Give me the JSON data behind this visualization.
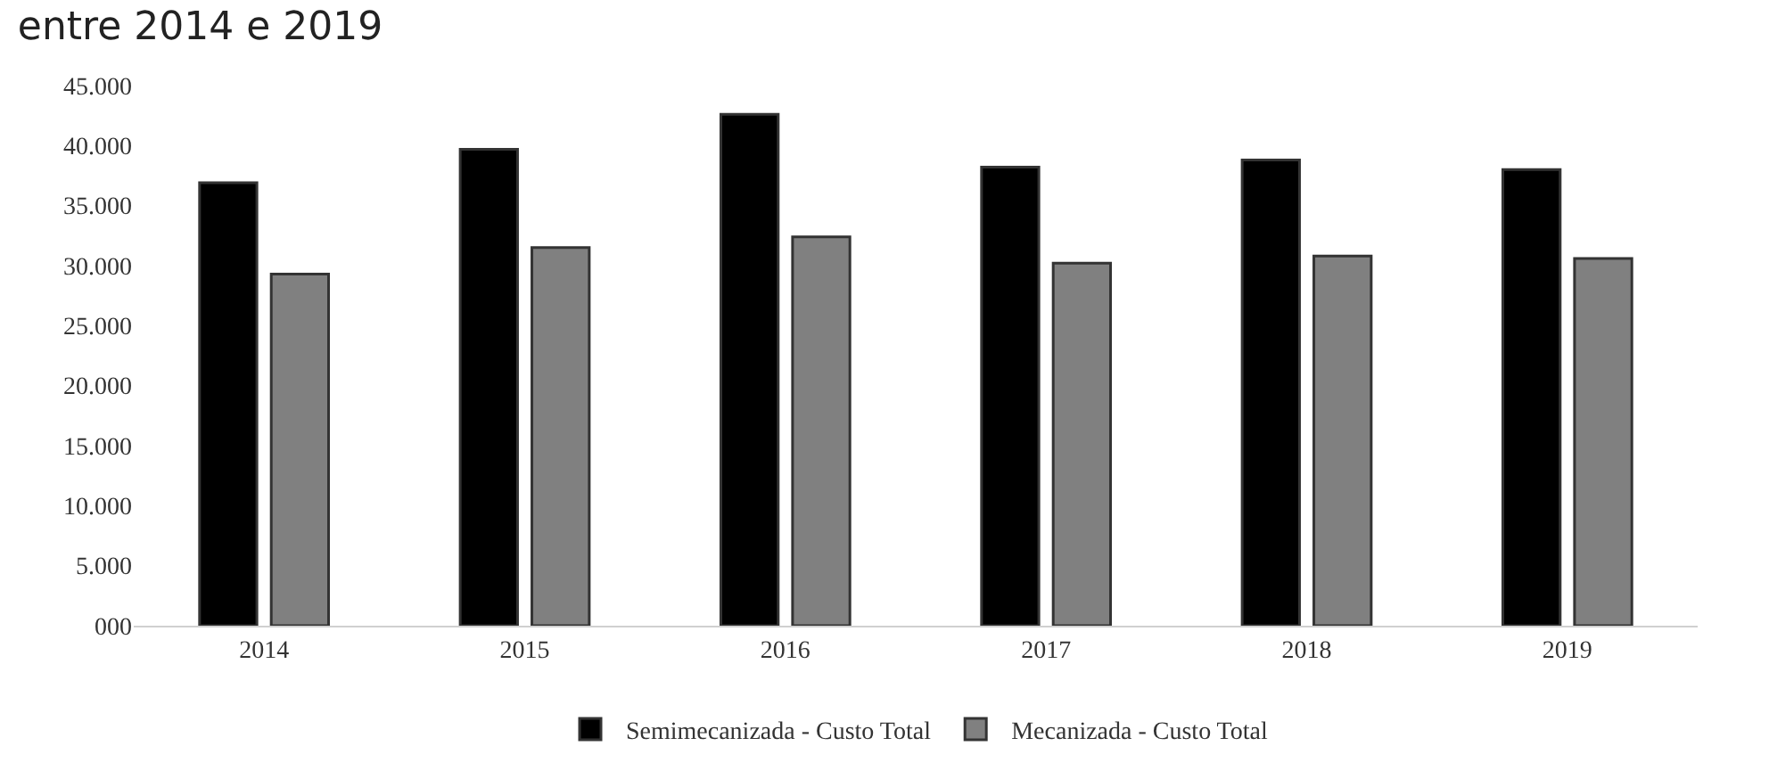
{
  "chart_data": {
    "type": "bar",
    "title": "entre 2014 e 2019",
    "categories": [
      "2014",
      "2015",
      "2016",
      "2017",
      "2018",
      "2019"
    ],
    "series": [
      {
        "name": "Semimecanizada - Custo Total",
        "color": "#000000",
        "values": [
          36900,
          39700,
          42600,
          38200,
          38800,
          38000
        ]
      },
      {
        "name": "Mecanizada - Custo Total",
        "color": "#808080",
        "values": [
          29300,
          31500,
          32400,
          30200,
          30800,
          30600
        ]
      }
    ],
    "ylim": [
      0,
      45000
    ],
    "yticks": [
      {
        "value": 0,
        "label": "000"
      },
      {
        "value": 5000,
        "label": "5.000"
      },
      {
        "value": 10000,
        "label": "10.000"
      },
      {
        "value": 15000,
        "label": "15.000"
      },
      {
        "value": 20000,
        "label": "20.000"
      },
      {
        "value": 25000,
        "label": "25.000"
      },
      {
        "value": 30000,
        "label": "30.000"
      },
      {
        "value": 35000,
        "label": "35.000"
      },
      {
        "value": 40000,
        "label": "40.000"
      },
      {
        "value": 45000,
        "label": "45.000"
      }
    ],
    "grid": false,
    "legend": "bottom"
  }
}
